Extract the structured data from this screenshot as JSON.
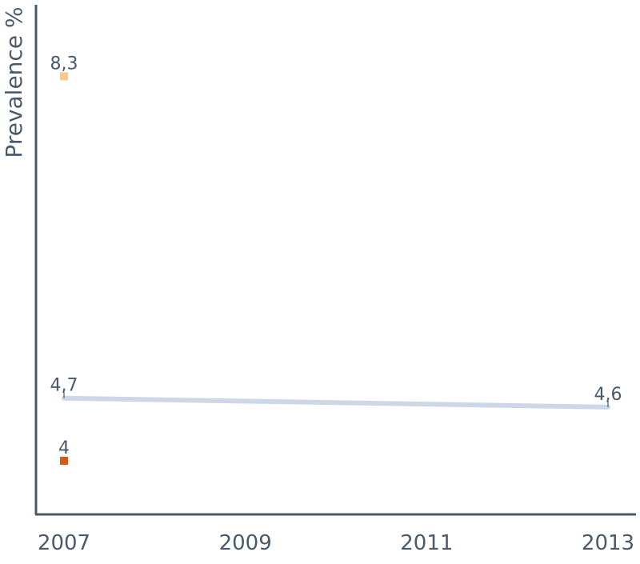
{
  "chart_data": {
    "type": "line",
    "title": "",
    "xlabel": "",
    "ylabel": "Prevalence %",
    "x": [
      2007,
      2009,
      2011,
      2013
    ],
    "tick_labels": [
      "2007",
      "2009",
      "2011",
      "2013"
    ],
    "xlim": [
      2007,
      2013
    ],
    "ylim": [
      3.4,
      9.1
    ],
    "grid": false,
    "legend": "none",
    "series": [
      {
        "color": "#f7c98a",
        "marker": "square",
        "points": [
          {
            "x": 2007,
            "y": 8.3,
            "label": "8,3"
          }
        ]
      },
      {
        "color": "#cdd8e6",
        "marker": "none",
        "points": [
          {
            "x": 2007,
            "y": 4.7,
            "label": "4,7"
          },
          {
            "x": 2013,
            "y": 4.6,
            "label": "4,6"
          }
        ]
      },
      {
        "color": "#d65a13",
        "marker": "square",
        "points": [
          {
            "x": 2007,
            "y": 4.0,
            "label": "4"
          }
        ]
      }
    ]
  }
}
